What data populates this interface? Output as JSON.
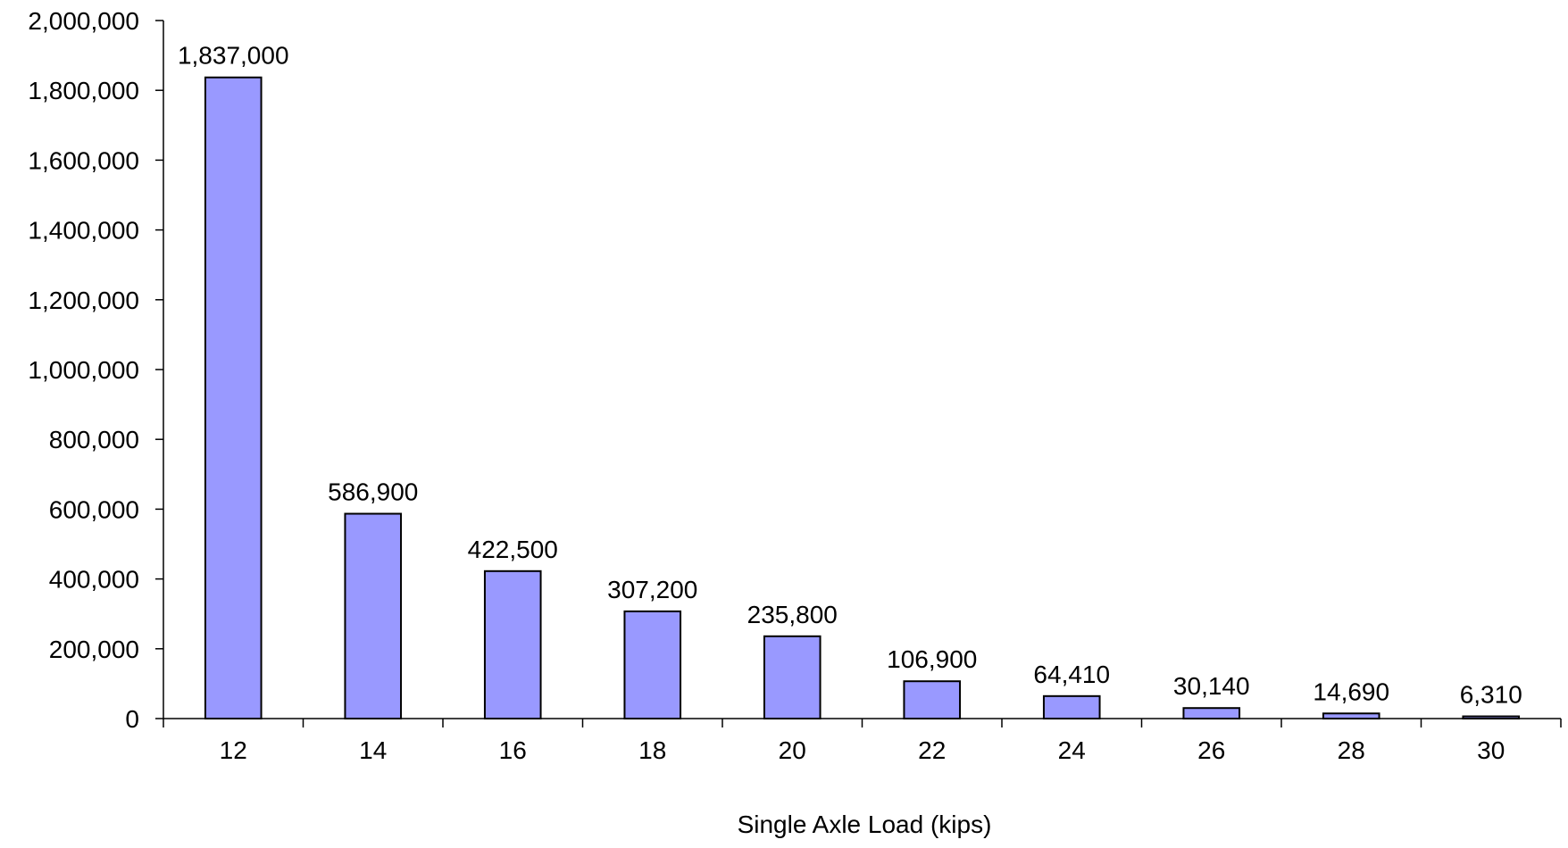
{
  "chart_data": {
    "type": "bar",
    "title": "",
    "xlabel": "Single Axle Load (kips)",
    "ylabel": "",
    "categories": [
      "12",
      "14",
      "16",
      "18",
      "20",
      "22",
      "24",
      "26",
      "28",
      "30"
    ],
    "values": [
      1837000,
      586900,
      422500,
      307200,
      235800,
      106900,
      64410,
      30140,
      14690,
      6310
    ],
    "value_labels": [
      "1,837,000",
      "586,900",
      "422,500",
      "307,200",
      "235,800",
      "106,900",
      "64,410",
      "30,140",
      "14,690",
      "6,310"
    ],
    "ylim": [
      0,
      2000000
    ],
    "yticks": [
      0,
      200000,
      400000,
      600000,
      800000,
      1000000,
      1200000,
      1400000,
      1600000,
      1800000,
      2000000
    ],
    "ytick_labels": [
      "0",
      "200,000",
      "400,000",
      "600,000",
      "800,000",
      "1,000,000",
      "1,200,000",
      "1,400,000",
      "1,600,000",
      "1,800,000",
      "2,000,000"
    ],
    "grid": false,
    "legend": "none",
    "bar_color": "#9999ff",
    "bar_edge_color": "#000000"
  }
}
